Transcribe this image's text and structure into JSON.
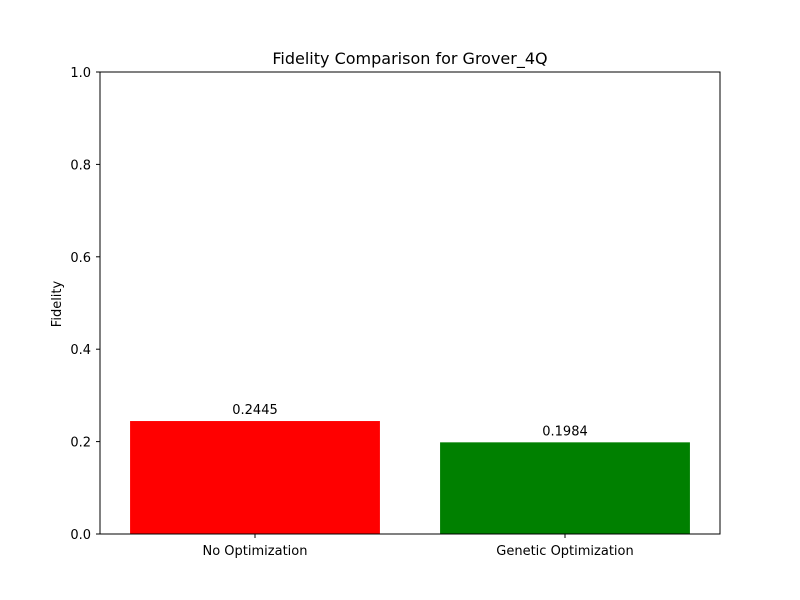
{
  "chart_data": {
    "type": "bar",
    "title": "Fidelity Comparison for Grover_4Q",
    "xlabel": "",
    "ylabel": "Fidelity",
    "categories": [
      "No Optimization",
      "Genetic Optimization"
    ],
    "values": [
      0.2445,
      0.1984
    ],
    "value_labels": [
      "0.2445",
      "0.1984"
    ],
    "colors": [
      "#ff0000",
      "#008000"
    ],
    "ylim": [
      0,
      1.0
    ],
    "yticks": [
      0.0,
      0.2,
      0.4,
      0.6,
      0.8,
      1.0
    ],
    "ytick_labels": [
      "0.0",
      "0.2",
      "0.4",
      "0.6",
      "0.8",
      "1.0"
    ],
    "grid": false
  }
}
